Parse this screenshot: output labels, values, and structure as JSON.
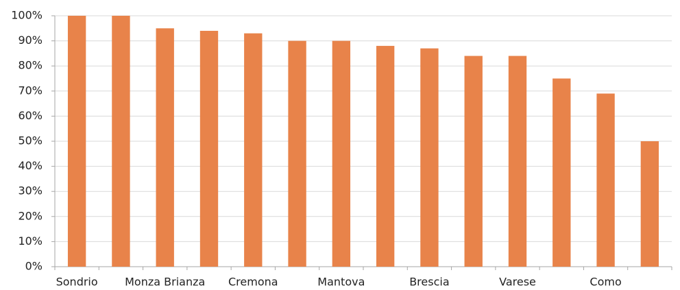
{
  "chart_data": {
    "type": "bar",
    "categories": [
      "Sondrio",
      null,
      "Monza Brianza",
      null,
      "Cremona",
      null,
      "Mantova",
      null,
      "Brescia",
      null,
      "Varese",
      null,
      "Como",
      null
    ],
    "values": [
      100,
      100,
      95,
      94,
      93,
      90,
      90,
      88,
      87,
      84,
      84,
      75,
      69,
      50
    ],
    "color": "#e8834a",
    "ylim": [
      0,
      100
    ],
    "yticks": [
      {
        "value": 0,
        "label": "0%"
      },
      {
        "value": 10,
        "label": "10%"
      },
      {
        "value": 20,
        "label": "20%"
      },
      {
        "value": 30,
        "label": "30%"
      },
      {
        "value": 40,
        "label": "40%"
      },
      {
        "value": 50,
        "label": "50%"
      },
      {
        "value": 60,
        "label": "60%"
      },
      {
        "value": 70,
        "label": "70%"
      },
      {
        "value": 80,
        "label": "80%"
      },
      {
        "value": 90,
        "label": "90%"
      },
      {
        "value": 100,
        "label": "100%"
      }
    ],
    "grid": true
  }
}
